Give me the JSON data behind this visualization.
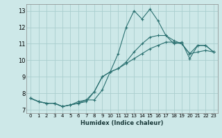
{
  "xlabel": "Humidex (Indice chaleur)",
  "ylabel": "",
  "xlim": [
    -0.5,
    23.5
  ],
  "ylim": [
    6.8,
    13.4
  ],
  "xtick_labels": [
    "0",
    "1",
    "2",
    "3",
    "4",
    "5",
    "6",
    "7",
    "8",
    "9",
    "10",
    "11",
    "12",
    "13",
    "14",
    "15",
    "16",
    "17",
    "18",
    "19",
    "20",
    "21",
    "22",
    "23"
  ],
  "ytick_labels": [
    "7",
    "8",
    "9",
    "10",
    "11",
    "12",
    "13"
  ],
  "bg_color": "#cde8e8",
  "grid_color": "#aacece",
  "line_color": "#2a7070",
  "line1_x": [
    0,
    1,
    2,
    3,
    4,
    5,
    6,
    7,
    8,
    9,
    10,
    11,
    12,
    13,
    14,
    15,
    16,
    17,
    18,
    19,
    20,
    21,
    22,
    23
  ],
  "line1_y": [
    7.7,
    7.5,
    7.4,
    7.4,
    7.2,
    7.3,
    7.4,
    7.6,
    7.6,
    8.2,
    9.3,
    10.4,
    12.0,
    13.0,
    12.5,
    13.1,
    12.4,
    11.5,
    11.0,
    11.1,
    10.1,
    10.9,
    10.9,
    10.5
  ],
  "line2_x": [
    0,
    1,
    2,
    3,
    4,
    5,
    6,
    7,
    8,
    9,
    10,
    11,
    12,
    13,
    14,
    15,
    16,
    17,
    18,
    19,
    20,
    21,
    22,
    23
  ],
  "line2_y": [
    7.7,
    7.5,
    7.4,
    7.4,
    7.2,
    7.3,
    7.4,
    7.5,
    8.1,
    9.0,
    9.3,
    9.5,
    9.9,
    10.5,
    11.0,
    11.4,
    11.5,
    11.5,
    11.2,
    11.0,
    10.4,
    10.9,
    10.9,
    10.5
  ],
  "line3_x": [
    0,
    1,
    2,
    3,
    4,
    5,
    6,
    7,
    8,
    9,
    10,
    11,
    12,
    13,
    14,
    15,
    16,
    17,
    18,
    19,
    20,
    21,
    22,
    23
  ],
  "line3_y": [
    7.7,
    7.5,
    7.4,
    7.4,
    7.2,
    7.3,
    7.5,
    7.6,
    8.1,
    9.0,
    9.3,
    9.5,
    9.8,
    10.1,
    10.4,
    10.7,
    10.9,
    11.1,
    11.1,
    11.0,
    10.4,
    10.5,
    10.6,
    10.5
  ]
}
